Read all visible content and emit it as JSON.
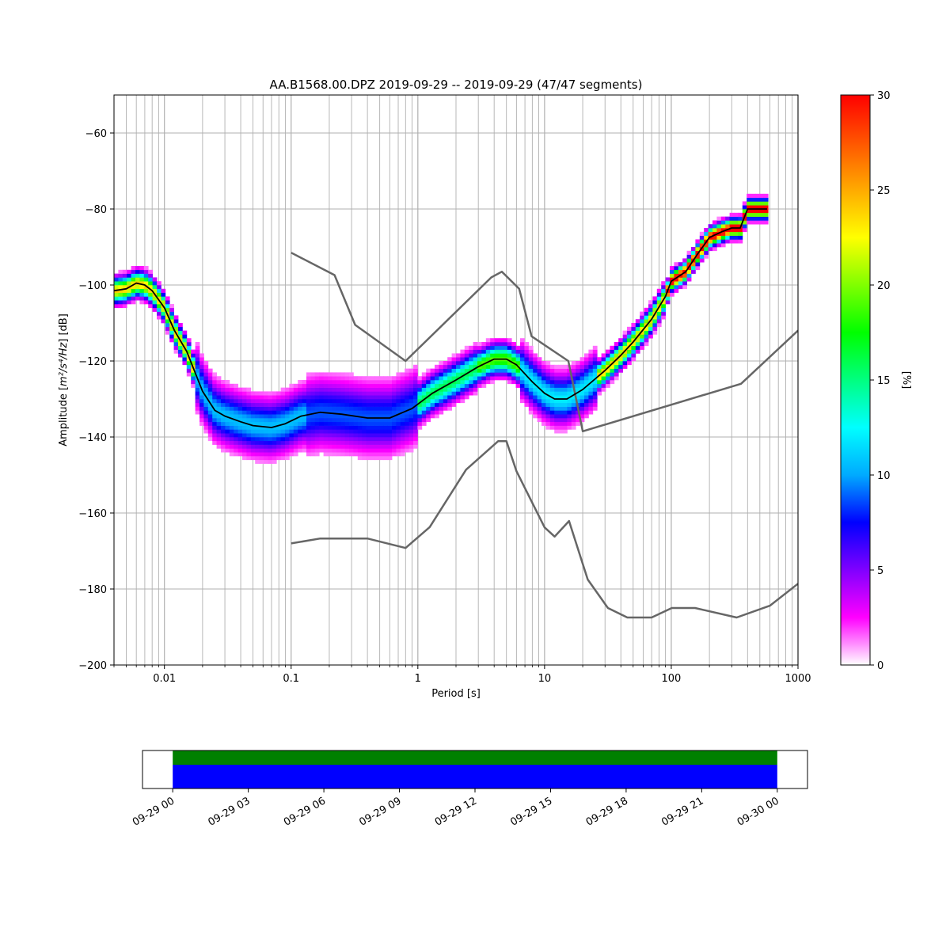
{
  "chart_data": [
    {
      "type": "heatmap",
      "title": "AA.B1568.00.DPZ   2019-09-29 -- 2019-09-29  (47/47 segments)",
      "xlabel": "Period [s]",
      "ylabel_prefix": "Amplitude [",
      "ylabel_math": "m²/s⁴/Hz",
      "ylabel_suffix": "] [dB]",
      "xscale": "log",
      "xlim": [
        0.004,
        1000
      ],
      "ylim": [
        -200,
        -50
      ],
      "x_ticks": [
        0.01,
        0.1,
        1,
        10,
        100,
        1000
      ],
      "x_tick_labels": [
        "0.01",
        "0.1",
        "1",
        "10",
        "100",
        "1000"
      ],
      "y_ticks": [
        -200,
        -180,
        -160,
        -140,
        -120,
        -100,
        -80,
        -60
      ],
      "y_tick_labels": [
        "−200",
        "−180",
        "−160",
        "−140",
        "−120",
        "−100",
        "−80",
        "−60"
      ],
      "grid": true,
      "colorbar": {
        "label": "[%]",
        "range": [
          0,
          30
        ],
        "ticks": [
          0,
          5,
          10,
          15,
          20,
          25,
          30
        ],
        "tick_labels": [
          "0",
          "5",
          "10",
          "15",
          "20",
          "25",
          "30"
        ],
        "colors": [
          "#ffffff",
          "#ff00ff",
          "#8000ff",
          "#0000ff",
          "#00aaff",
          "#00ffff",
          "#00ff80",
          "#00ff00",
          "#80ff00",
          "#ffff00",
          "#ffaa00",
          "#ff5500",
          "#ff0000"
        ]
      },
      "mean_curve": {
        "color": "#000000",
        "period": [
          0.004,
          0.005,
          0.006,
          0.007,
          0.008,
          0.01,
          0.012,
          0.015,
          0.02,
          0.025,
          0.03,
          0.04,
          0.05,
          0.07,
          0.09,
          0.12,
          0.17,
          0.25,
          0.4,
          0.6,
          0.9,
          1.3,
          2.0,
          3.0,
          4.0,
          5.0,
          6.0,
          8.0,
          10.0,
          12.0,
          15.0,
          20.0,
          30.0,
          40.0,
          50.0,
          70.0,
          90.0,
          100.0,
          130.0,
          160.0,
          200.0,
          250.0,
          300.0,
          350.0,
          400.0,
          500.0,
          570.0
        ],
        "db": [
          -101.5,
          -101.0,
          -99.5,
          -100.0,
          -101.5,
          -106.0,
          -112.0,
          -117.5,
          -128.0,
          -133.0,
          -134.5,
          -136.0,
          -137.0,
          -137.5,
          -136.5,
          -134.5,
          -133.5,
          -134.0,
          -135.0,
          -135.0,
          -132.5,
          -128.5,
          -125.0,
          -121.5,
          -119.5,
          -119.5,
          -121.0,
          -125.5,
          -128.5,
          -130.0,
          -130.0,
          -127.5,
          -122.5,
          -118.5,
          -115.0,
          -109.0,
          -103.0,
          -99.0,
          -96.5,
          -92.0,
          -87.5,
          -86.0,
          -85.0,
          -85.0,
          -80.0,
          -80.0,
          -80.0
        ]
      },
      "nlnm": {
        "color": "#666666",
        "period": [
          0.1,
          0.17,
          0.4,
          0.8,
          1.24,
          2.4,
          4.3,
          5.0,
          6.0,
          10.0,
          12.0,
          15.6,
          21.9,
          31.6,
          45.0,
          70.0,
          101.0,
          154.0,
          328.0,
          600.0,
          1000.0
        ],
        "db": [
          -168.0,
          -166.7,
          -166.7,
          -169.2,
          -163.7,
          -148.6,
          -141.1,
          -141.1,
          -149.0,
          -163.8,
          -166.2,
          -162.1,
          -177.5,
          -185.0,
          -187.5,
          -187.5,
          -185.0,
          -185.0,
          -187.5,
          -184.4,
          -178.6
        ]
      },
      "nhnm": {
        "color": "#666666",
        "period": [
          0.1,
          0.22,
          0.32,
          0.8,
          3.8,
          4.6,
          6.3,
          7.9,
          15.4,
          20.0,
          354.8,
          1000.0
        ],
        "db": [
          -91.5,
          -97.4,
          -110.5,
          -120.0,
          -98.0,
          -96.5,
          -101.0,
          -113.5,
          -120.0,
          -138.5,
          -126.0,
          -112.0
        ]
      }
    },
    {
      "type": "timeline",
      "tick_labels": [
        "09-29 00",
        "09-29 03",
        "09-29 06",
        "09-29 09",
        "09-29 12",
        "09-29 15",
        "09-29 18",
        "09-29 21",
        "09-30 00"
      ],
      "range_hours": [
        -1.2,
        25.2
      ],
      "bars": [
        {
          "color": "#008000",
          "start_hour": 0,
          "end_hour": 24
        },
        {
          "color": "#0000ff",
          "start_hour": 0,
          "end_hour": 24
        }
      ]
    }
  ]
}
